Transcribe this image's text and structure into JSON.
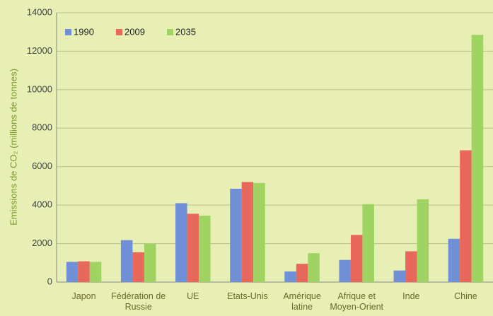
{
  "chart_data": {
    "type": "bar",
    "y_label": "Emissions de CO₂ (millions de tonnes)",
    "categories": [
      "Japon",
      "Fédération de Russie",
      "UE",
      "Etats-Unis",
      "Amérique latine",
      "Afrique et Moyen-Orient",
      "Inde",
      "Chine"
    ],
    "series": [
      {
        "name": "1990",
        "color": "#6f8fd6",
        "values": [
          1050,
          2180,
          4100,
          4850,
          550,
          1150,
          600,
          2250
        ]
      },
      {
        "name": "2009",
        "color": "#e8685b",
        "values": [
          1080,
          1550,
          3550,
          5200,
          950,
          2450,
          1600,
          6850
        ]
      },
      {
        "name": "2035",
        "color": "#a0d462",
        "values": [
          1050,
          2000,
          3450,
          5150,
          1500,
          4050,
          4300,
          12850
        ]
      }
    ],
    "ylim": [
      0,
      14000
    ],
    "yticks": [
      0,
      2000,
      4000,
      6000,
      8000,
      10000,
      12000,
      14000
    ],
    "grid": true,
    "legend": "top-left"
  }
}
